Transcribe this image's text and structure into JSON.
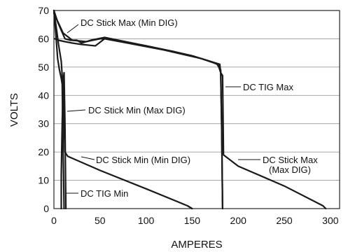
{
  "chart_data": {
    "type": "line",
    "xlabel": "AMPERES",
    "ylabel": "VOLTS",
    "xlim": [
      0,
      310
    ],
    "ylim": [
      0,
      70
    ],
    "x_ticks": [
      "0",
      "50",
      "100",
      "150",
      "200",
      "250",
      "300"
    ],
    "y_ticks": [
      "0",
      "10",
      "20",
      "30",
      "40",
      "50",
      "60",
      "70"
    ],
    "grid": "horizontal",
    "legend": "none",
    "series": [
      {
        "name": "DC Stick Max (Min DIG)",
        "x": [
          0,
          4,
          8,
          12,
          18,
          25,
          30,
          40,
          55,
          70,
          100,
          130,
          150,
          170,
          177,
          181,
          182,
          183
        ],
        "y": [
          70,
          66,
          63,
          60,
          59.5,
          59.5,
          58.5,
          59.5,
          60.5,
          59.5,
          57.5,
          55.5,
          54,
          52,
          51,
          49,
          30,
          0
        ]
      },
      {
        "name": "DC Stick Max (Max DIG)",
        "x": [
          0,
          10,
          20,
          35,
          50,
          60,
          100,
          150,
          180,
          181,
          183,
          184,
          200,
          250,
          292,
          295
        ],
        "y": [
          69,
          62,
          59.5,
          59,
          60,
          60,
          57.5,
          54,
          51,
          48,
          47,
          19,
          15,
          8,
          1,
          0
        ]
      },
      {
        "name": "DC Stick Min (Min DIG)",
        "x": [
          0,
          3,
          5,
          8,
          9,
          10,
          11,
          12,
          13,
          15,
          50,
          100,
          145,
          150
        ],
        "y": [
          70,
          63,
          58,
          52,
          47,
          44,
          30,
          20,
          19.5,
          18.5,
          13.5,
          7,
          1,
          0
        ]
      },
      {
        "name": "DC Stick Min (Max DIG)",
        "x": [
          0,
          2,
          4,
          6,
          8,
          9,
          10,
          11
        ],
        "y": [
          70,
          62,
          53,
          49,
          46,
          44,
          20,
          0
        ]
      },
      {
        "name": "DC TIG Min",
        "x": [
          8,
          8,
          9,
          10,
          10,
          11,
          12,
          13
        ],
        "y": [
          0,
          12,
          30,
          44,
          45,
          48,
          30,
          0
        ]
      },
      {
        "name": "DC TIG Max",
        "x": [
          1,
          5,
          12,
          20,
          30,
          45,
          55,
          80,
          120,
          160,
          178,
          181,
          182,
          183
        ],
        "y": [
          60,
          59.5,
          59,
          58.5,
          58,
          57.5,
          60,
          58.5,
          56,
          53,
          51,
          48,
          30,
          0
        ]
      }
    ],
    "annotations": [
      "DC Stick Max (Min DIG)",
      "DC TIG Max",
      "DC Stick Min (Max DIG)",
      "DC Stick Min (Min DIG)",
      "DC Stick Max",
      "(Max DIG)",
      "DC TIG Min"
    ]
  }
}
